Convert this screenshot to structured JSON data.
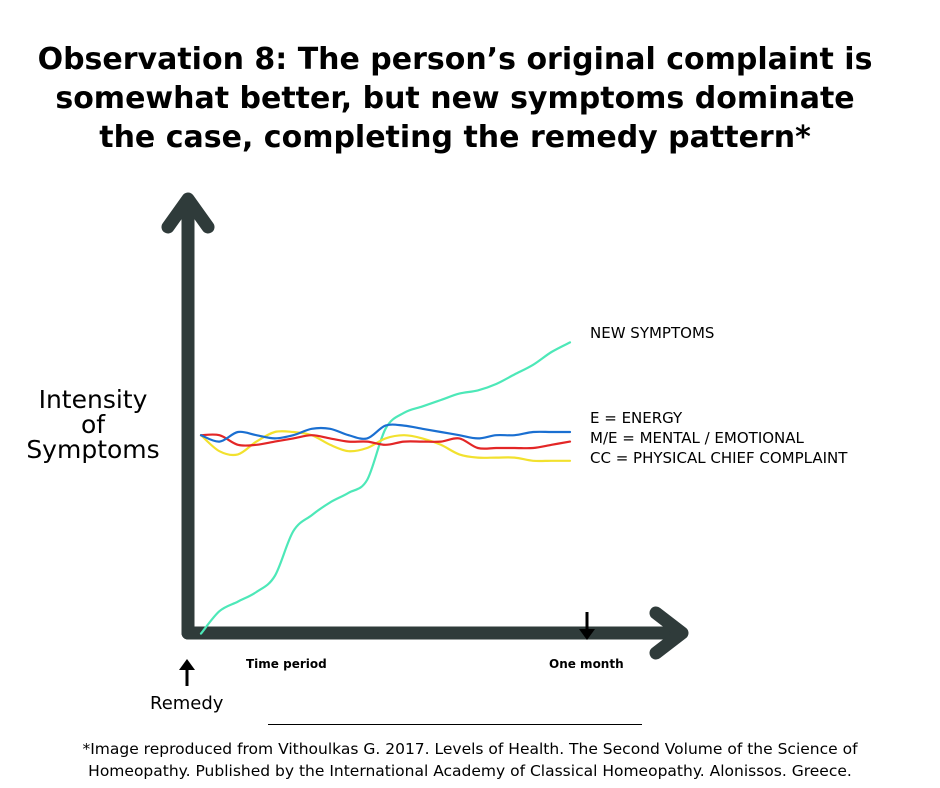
{
  "title_lines": [
    "Observation 8: The person’s original complaint is",
    "somewhat better, but new symptoms dominate",
    "the case, completing the remedy pattern*"
  ],
  "y_axis_label_lines": [
    "Intensity",
    "of",
    "Symptoms"
  ],
  "x_ticks": {
    "start": "Time period",
    "end": "One month"
  },
  "remedy_label": "Remedy",
  "citation_lines": [
    "*Image reproduced from Vithoulkas G. 2017. Levels of Health. The Second Volume of the Science of",
    "Homeopathy. Published by the International Academy of Classical Homeopathy. Alonissos. Greece."
  ],
  "colors": {
    "axis": "#2f3b3a",
    "new_symptoms": "#4de8b8",
    "energy": "#1a6fd1",
    "mental_emotional": "#e32626",
    "physical_chief_complaint": "#f2e12e"
  },
  "chart_data": {
    "type": "line",
    "title": "Observation 8: The person’s original complaint is somewhat better, but new symptoms dominate the case, completing the remedy pattern*",
    "xlabel": "",
    "ylabel": "Intensity of Symptoms",
    "x_tick_labels": [
      "Time period",
      "One month"
    ],
    "xlim": [
      0,
      1
    ],
    "ylim": [
      0,
      10
    ],
    "grid": false,
    "legend_placement": "right",
    "x": [
      0,
      0.05,
      0.1,
      0.15,
      0.2,
      0.25,
      0.3,
      0.35,
      0.4,
      0.45,
      0.5,
      0.55,
      0.6,
      0.65,
      0.7,
      0.75,
      0.8,
      0.85,
      0.9,
      0.95,
      1.0
    ],
    "series": [
      {
        "name": "NEW SYMPTOMS",
        "color_key": "new_symptoms",
        "values": [
          0.2,
          0.9,
          1.2,
          1.5,
          2.0,
          3.4,
          3.9,
          4.3,
          4.6,
          5.0,
          6.6,
          7.1,
          7.3,
          7.5,
          7.7,
          7.8,
          8.0,
          8.3,
          8.6,
          9.0,
          9.3
        ]
      },
      {
        "name": "E = ENERGY",
        "color_key": "energy",
        "values": [
          6.4,
          6.2,
          6.5,
          6.4,
          6.3,
          6.4,
          6.6,
          6.6,
          6.4,
          6.3,
          6.7,
          6.7,
          6.6,
          6.5,
          6.4,
          6.3,
          6.4,
          6.4,
          6.5,
          6.5,
          6.5
        ]
      },
      {
        "name": "M/E = MENTAL / EMOTIONAL",
        "color_key": "mental_emotional",
        "values": [
          6.4,
          6.4,
          6.1,
          6.1,
          6.2,
          6.3,
          6.4,
          6.3,
          6.2,
          6.2,
          6.1,
          6.2,
          6.2,
          6.2,
          6.3,
          6.0,
          6.0,
          6.0,
          6.0,
          6.1,
          6.2
        ]
      },
      {
        "name": "CC = PHYSICAL CHIEF COMPLAINT",
        "color_key": "physical_chief_complaint",
        "values": [
          6.4,
          5.9,
          5.8,
          6.2,
          6.5,
          6.5,
          6.4,
          6.1,
          5.9,
          6.0,
          6.3,
          6.4,
          6.3,
          6.1,
          5.8,
          5.7,
          5.7,
          5.7,
          5.6,
          5.6,
          5.6
        ]
      }
    ]
  }
}
